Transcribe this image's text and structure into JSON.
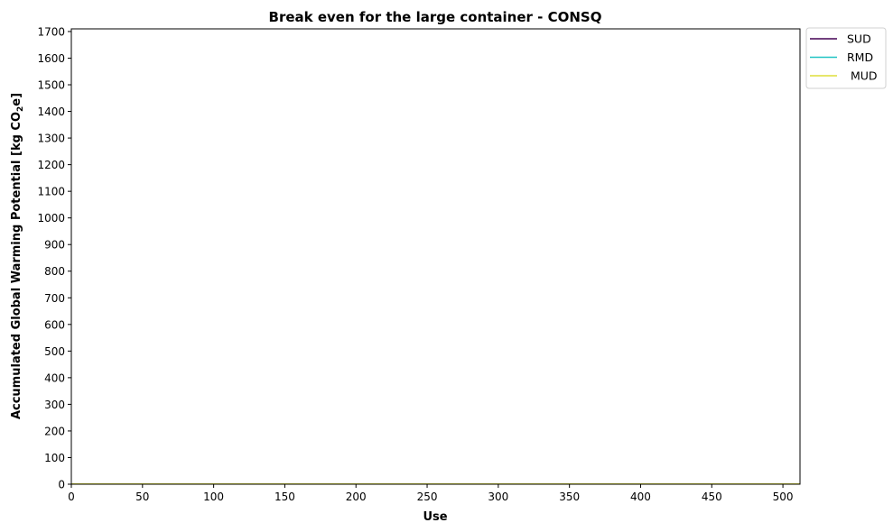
{
  "chart_data": {
    "type": "line",
    "title": "Break even for the large container - CONSQ",
    "xlabel": "Use",
    "ylabel_main": "Accumulated Global Warming Potential [kg CO",
    "ylabel_sub": "2",
    "ylabel_end": "e]",
    "xlim": [
      0,
      512
    ],
    "ylim": [
      0,
      1710
    ],
    "x_ticks": [
      0,
      50,
      100,
      150,
      200,
      250,
      300,
      350,
      400,
      450,
      500
    ],
    "y_ticks": [
      0,
      100,
      200,
      300,
      400,
      500,
      600,
      700,
      800,
      900,
      1000,
      1100,
      1200,
      1300,
      1400,
      1500,
      1600,
      1700
    ],
    "grid": false,
    "legend_position": "outside-top-right",
    "series": [
      {
        "name": "SUD",
        "color": "#440154",
        "x": [
          0,
          512
        ],
        "y": [
          0.8,
          0.8
        ]
      },
      {
        "name": "RMD",
        "color": "#21c4c4",
        "x": [
          0,
          512
        ],
        "y": [
          0.8,
          0.8
        ]
      },
      {
        "name": " MUD",
        "color": "#dede3a",
        "x": [
          0,
          512
        ],
        "y": [
          0.8,
          0.8
        ]
      }
    ]
  }
}
